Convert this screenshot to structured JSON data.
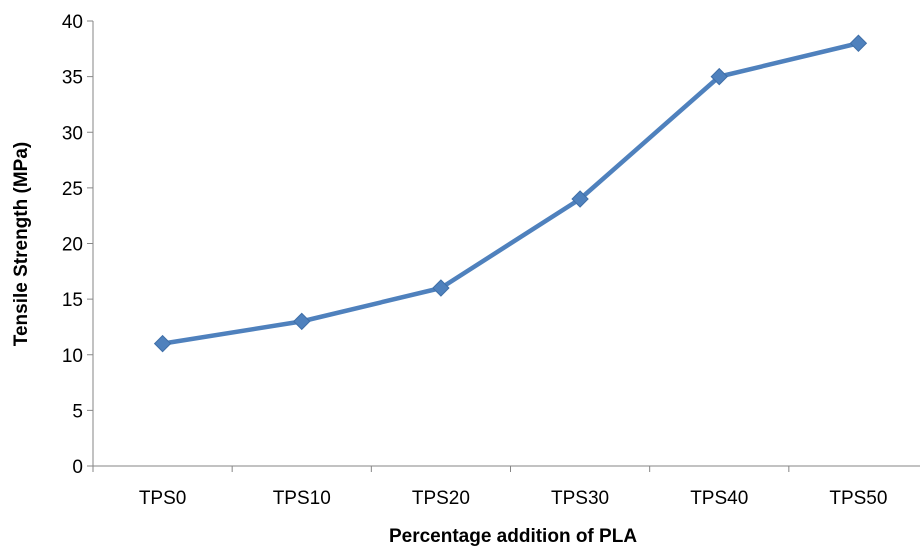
{
  "chart_data": {
    "type": "line",
    "title": "",
    "xlabel": "Percentage addition of PLA",
    "ylabel": "Tensile Strength (MPa)",
    "categories": [
      "TPS0",
      "TPS10",
      "TPS20",
      "TPS30",
      "TPS40",
      "TPS50"
    ],
    "series": [
      {
        "values": [
          11,
          13,
          16,
          24,
          35,
          38
        ],
        "color": "#4F81BD",
        "marker": "diamond"
      }
    ],
    "ylim": [
      0,
      40
    ],
    "yticks": [
      0,
      5,
      10,
      15,
      20,
      25,
      30,
      35,
      40
    ],
    "grid": false,
    "legend": "none"
  }
}
